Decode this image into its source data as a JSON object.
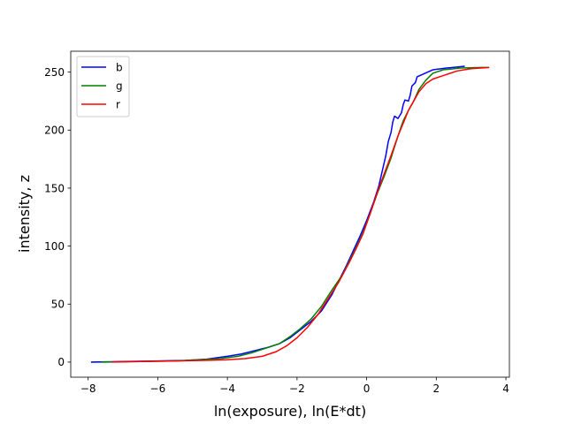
{
  "chart_data": {
    "type": "line",
    "xlabel": "ln(exposure), ln(E*dt)",
    "ylabel": "intensity, z",
    "xlim": [
      -8.5,
      4.1
    ],
    "ylim": [
      -13,
      268
    ],
    "xticks": [
      -8,
      -6,
      -4,
      -2,
      0,
      2,
      4
    ],
    "yticks": [
      0,
      50,
      100,
      150,
      200,
      250
    ],
    "legend_position": "top-left",
    "grid": false,
    "series": [
      {
        "name": "b",
        "color": "#0000ff",
        "points": [
          [
            -7.9,
            0
          ],
          [
            -7.0,
            0.5
          ],
          [
            -6.0,
            1
          ],
          [
            -5.2,
            1.5
          ],
          [
            -4.6,
            2.5
          ],
          [
            -4.0,
            5
          ],
          [
            -3.6,
            7
          ],
          [
            -3.2,
            10
          ],
          [
            -2.8,
            13
          ],
          [
            -2.5,
            16
          ],
          [
            -2.2,
            21
          ],
          [
            -1.9,
            28
          ],
          [
            -1.6,
            35
          ],
          [
            -1.3,
            44
          ],
          [
            -1.0,
            58
          ],
          [
            -0.8,
            70
          ],
          [
            -0.6,
            82
          ],
          [
            -0.4,
            95
          ],
          [
            -0.2,
            108
          ],
          [
            0.0,
            122
          ],
          [
            0.2,
            138
          ],
          [
            0.35,
            152
          ],
          [
            0.45,
            165
          ],
          [
            0.55,
            178
          ],
          [
            0.62,
            190
          ],
          [
            0.7,
            198
          ],
          [
            0.75,
            207
          ],
          [
            0.8,
            212
          ],
          [
            0.9,
            210
          ],
          [
            1.0,
            215
          ],
          [
            1.05,
            222
          ],
          [
            1.1,
            226
          ],
          [
            1.2,
            225
          ],
          [
            1.25,
            230
          ],
          [
            1.3,
            238
          ],
          [
            1.4,
            241
          ],
          [
            1.45,
            246
          ],
          [
            1.6,
            248
          ],
          [
            1.9,
            252
          ],
          [
            2.3,
            253.5
          ],
          [
            2.8,
            255
          ]
        ]
      },
      {
        "name": "g",
        "color": "#008000",
        "points": [
          [
            -7.6,
            0
          ],
          [
            -6.5,
            0.5
          ],
          [
            -5.5,
            1
          ],
          [
            -4.8,
            2
          ],
          [
            -4.2,
            3
          ],
          [
            -3.7,
            5
          ],
          [
            -3.3,
            8
          ],
          [
            -2.9,
            12
          ],
          [
            -2.5,
            16
          ],
          [
            -2.2,
            22
          ],
          [
            -1.9,
            29
          ],
          [
            -1.6,
            37
          ],
          [
            -1.3,
            48
          ],
          [
            -1.0,
            62
          ],
          [
            -0.7,
            75
          ],
          [
            -0.5,
            87
          ],
          [
            -0.3,
            99
          ],
          [
            -0.1,
            112
          ],
          [
            0.1,
            128
          ],
          [
            0.3,
            145
          ],
          [
            0.5,
            160
          ],
          [
            0.7,
            176
          ],
          [
            0.9,
            195
          ],
          [
            1.05,
            208
          ],
          [
            1.2,
            217
          ],
          [
            1.35,
            225
          ],
          [
            1.5,
            235
          ],
          [
            1.7,
            243
          ],
          [
            1.9,
            249
          ],
          [
            2.2,
            252
          ],
          [
            2.7,
            253.5
          ],
          [
            3.3,
            254
          ],
          [
            3.5,
            254
          ]
        ]
      },
      {
        "name": "r",
        "color": "#ff0000",
        "points": [
          [
            -7.3,
            0
          ],
          [
            -6.5,
            0.5
          ],
          [
            -5.5,
            1
          ],
          [
            -4.7,
            1.5
          ],
          [
            -4.0,
            2
          ],
          [
            -3.5,
            3
          ],
          [
            -3.0,
            5
          ],
          [
            -2.6,
            9
          ],
          [
            -2.3,
            14
          ],
          [
            -2.0,
            21
          ],
          [
            -1.7,
            30
          ],
          [
            -1.4,
            41
          ],
          [
            -1.1,
            55
          ],
          [
            -0.8,
            69
          ],
          [
            -0.5,
            86
          ],
          [
            -0.3,
            98
          ],
          [
            -0.1,
            111
          ],
          [
            0.1,
            128
          ],
          [
            0.3,
            146
          ],
          [
            0.5,
            162
          ],
          [
            0.7,
            178
          ],
          [
            0.9,
            195
          ],
          [
            1.05,
            206
          ],
          [
            1.2,
            217
          ],
          [
            1.35,
            225
          ],
          [
            1.5,
            233
          ],
          [
            1.7,
            240
          ],
          [
            1.9,
            244
          ],
          [
            2.2,
            247
          ],
          [
            2.6,
            251
          ],
          [
            3.0,
            253
          ],
          [
            3.5,
            254
          ]
        ]
      }
    ]
  }
}
